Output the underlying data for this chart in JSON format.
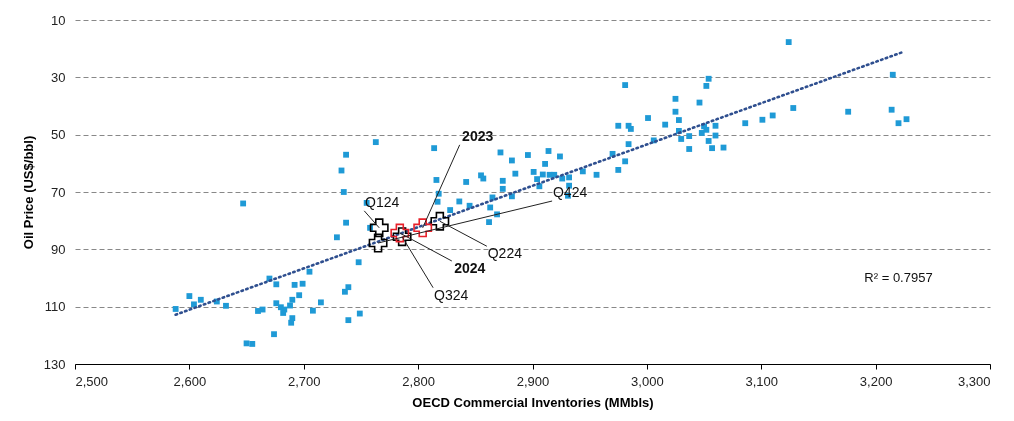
{
  "chart_data": {
    "type": "scatter",
    "xlabel": "OECD Commercial Inventories (MMbls)",
    "ylabel": "Oil Price (US$/bbl)",
    "xlim": [
      2500,
      3300
    ],
    "xticks": [
      {
        "value": 2500,
        "label": "2,500"
      },
      {
        "value": 2600,
        "label": "2,600"
      },
      {
        "value": 2700,
        "label": "2,700"
      },
      {
        "value": 2800,
        "label": "2,800"
      },
      {
        "value": 2900,
        "label": "2,900"
      },
      {
        "value": 3000,
        "label": "3,000"
      },
      {
        "value": 3100,
        "label": "3,100"
      },
      {
        "value": 3200,
        "label": "3,200"
      },
      {
        "value": 3300,
        "label": "3,300"
      }
    ],
    "ylim": [
      130,
      10
    ],
    "yticks": [
      10,
      30,
      50,
      70,
      90,
      110,
      130
    ],
    "grid": "y",
    "series": [
      {
        "type": "scatter",
        "marker": "square",
        "color": "#1f9ad6",
        "x": [
          2733,
          2735,
          2647,
          2755,
          2737,
          2758,
          2729,
          2748,
          2705,
          2670,
          2676,
          2692,
          2699,
          2739,
          2736,
          2600,
          2610,
          2604,
          2624,
          2632,
          2588,
          2696,
          2690,
          2676,
          2688,
          2680,
          2715,
          2664,
          2660,
          2683,
          2682,
          2708,
          2690,
          2689,
          2739,
          2749,
          2674,
          2650,
          2655,
          2763,
          2737,
          2814,
          2872,
          2882,
          2896,
          2914,
          2924,
          2911,
          2885,
          2842,
          2855,
          2857,
          2874,
          2874,
          2816,
          2818,
          2817,
          2836,
          2828,
          2865,
          2882,
          2863,
          2869,
          2901,
          2904,
          2909,
          2915,
          2919,
          2932,
          2931,
          2906,
          2975,
          2984,
          2986,
          3001,
          3006,
          2984,
          2970,
          2981,
          2975,
          2956,
          2944,
          2926,
          2932,
          2845,
          2862,
          3124,
          3215,
          3054,
          3052,
          2981,
          3025,
          3046,
          3025,
          3028,
          3016,
          3028,
          3030,
          3037,
          3048,
          3050,
          3052,
          3060,
          3060,
          3054,
          3057,
          3067,
          3037,
          3086,
          3101,
          3110,
          3128,
          3176,
          3214,
          3220,
          3227
        ],
        "values": [
          62.5,
          70,
          74,
          73.8,
          80.7,
          82.5,
          85.8,
          94.5,
          97.8,
          100.2,
          102.2,
          102.4,
          102,
          103.2,
          104.8,
          106.3,
          107.6,
          109.2,
          108.2,
          109.7,
          110.8,
          106,
          107.6,
          108.8,
          109.6,
          110.2,
          108.5,
          111,
          111.5,
          111,
          112.2,
          111.4,
          114,
          115.6,
          114.7,
          112.4,
          119.6,
          122.8,
          123,
          52.6,
          57,
          54.7,
          56.2,
          59,
          57.1,
          55.7,
          57.6,
          60.2,
          63.6,
          66.5,
          64.2,
          65.3,
          66.1,
          68.9,
          65.8,
          70.6,
          73.4,
          73.3,
          76.3,
          71.9,
          71.5,
          75.4,
          77.8,
          63,
          65.5,
          63.9,
          64,
          64,
          64.9,
          71.3,
          68,
          46.9,
          46.9,
          48,
          44.2,
          52,
          53.3,
          56.7,
          59.3,
          62.3,
          64,
          62.8,
          65.3,
          67.8,
          74.8,
          80.5,
          17.7,
          29.1,
          30.5,
          33,
          32.7,
          37.5,
          38.8,
          42,
          44.9,
          46.5,
          48.7,
          51.5,
          50.5,
          49.4,
          47.1,
          48.3,
          46.9,
          50.3,
          52.2,
          54.7,
          54.5,
          55,
          46,
          44.8,
          43.3,
          40.7,
          42,
          41.3,
          46,
          44.6
        ]
      },
      {
        "type": "line",
        "line_style": "dotted",
        "color": "#2f4f8f",
        "x": [
          2588,
          3225
        ],
        "values": [
          112.8,
          21
        ]
      },
      {
        "type": "scatter",
        "marker": "cross",
        "color": "#000000",
        "x": [
          2766,
          2819,
          2786,
          2765
        ],
        "values": [
          82.5,
          80.2,
          85.6,
          87.8
        ]
      },
      {
        "type": "scatter",
        "marker": "cross",
        "color": "#e8202a",
        "x": [
          2804,
          2784
        ],
        "values": [
          82.5,
          84.3
        ]
      }
    ],
    "annotations": [
      {
        "text": "Q124",
        "x": 2766,
        "y": 82.5
      },
      {
        "text": "2023",
        "x": 2804,
        "y": 82.5
      },
      {
        "text": "Q424",
        "x": 2765,
        "y": 87.8
      },
      {
        "text": "Q224",
        "x": 2819,
        "y": 80.2
      },
      {
        "text": "2024",
        "x": 2784,
        "y": 84.3
      },
      {
        "text": "Q324",
        "x": 2786,
        "y": 85.6
      },
      "R² = 0.7957"
    ]
  }
}
